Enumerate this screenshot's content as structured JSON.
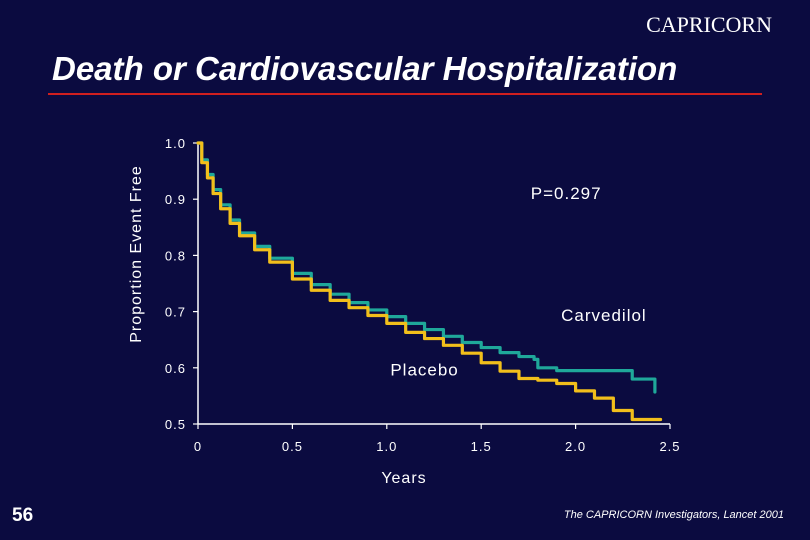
{
  "header": {
    "corner_label": "CAPRICORN",
    "title": "Death or Cardiovascular Hospitalization"
  },
  "footer": {
    "page_number": "56",
    "citation": "The CAPRICORN Investigators, Lancet 2001"
  },
  "colors": {
    "background": "#0b0b40",
    "title_rule": "#d01f1f",
    "carvedilol": "#1fa89a",
    "placebo": "#f2bf1b",
    "axis": "#ffffff"
  },
  "chart_data": {
    "type": "line",
    "title": "",
    "xlabel": "Years",
    "ylabel": "Proportion Event Free",
    "xlim": [
      0,
      2.5
    ],
    "ylim": [
      0.5,
      1.0
    ],
    "x_ticks": [
      0,
      0.5,
      1.0,
      1.5,
      2.0,
      2.5
    ],
    "x_tick_labels": [
      "0",
      "0.5",
      "1.0",
      "1.5",
      "2.0",
      "2.5"
    ],
    "y_ticks": [
      1.0,
      0.9,
      0.8,
      0.7,
      0.6,
      0.5
    ],
    "y_tick_labels": [
      "1.0",
      "0.9",
      "0.8",
      "0.7",
      "0.6",
      "0.5"
    ],
    "grid": false,
    "annotations": [
      {
        "text": "P=0.297",
        "x": 1.95,
        "y": 0.9
      },
      {
        "text": "Carvedilol",
        "x": 2.15,
        "y": 0.683
      },
      {
        "text": "Placebo",
        "x": 1.2,
        "y": 0.586
      }
    ],
    "series": [
      {
        "name": "Carvedilol",
        "color": "#1fa89a",
        "x": [
          0,
          0.02,
          0.05,
          0.08,
          0.12,
          0.17,
          0.22,
          0.3,
          0.38,
          0.5,
          0.6,
          0.7,
          0.8,
          0.9,
          1.0,
          1.1,
          1.2,
          1.3,
          1.4,
          1.5,
          1.6,
          1.7,
          1.78,
          1.8,
          1.9,
          2.0,
          2.1,
          2.2,
          2.25,
          2.3,
          2.42
        ],
        "y": [
          1.0,
          0.97,
          0.944,
          0.917,
          0.89,
          0.863,
          0.84,
          0.816,
          0.795,
          0.768,
          0.748,
          0.731,
          0.716,
          0.703,
          0.691,
          0.679,
          0.668,
          0.656,
          0.645,
          0.636,
          0.627,
          0.62,
          0.615,
          0.6,
          0.595,
          0.595,
          0.595,
          0.595,
          0.595,
          0.58,
          0.557
        ]
      },
      {
        "name": "Placebo",
        "color": "#f2bf1b",
        "x": [
          0,
          0.02,
          0.05,
          0.08,
          0.12,
          0.17,
          0.22,
          0.3,
          0.38,
          0.5,
          0.6,
          0.7,
          0.8,
          0.9,
          1.0,
          1.1,
          1.2,
          1.3,
          1.4,
          1.5,
          1.6,
          1.7,
          1.8,
          1.9,
          2.0,
          2.1,
          2.2,
          2.3,
          2.45
        ],
        "y": [
          1.0,
          0.965,
          0.938,
          0.91,
          0.883,
          0.857,
          0.835,
          0.81,
          0.788,
          0.758,
          0.738,
          0.72,
          0.707,
          0.693,
          0.679,
          0.663,
          0.652,
          0.64,
          0.626,
          0.609,
          0.594,
          0.581,
          0.578,
          0.572,
          0.559,
          0.546,
          0.524,
          0.508,
          0.508
        ]
      }
    ]
  }
}
